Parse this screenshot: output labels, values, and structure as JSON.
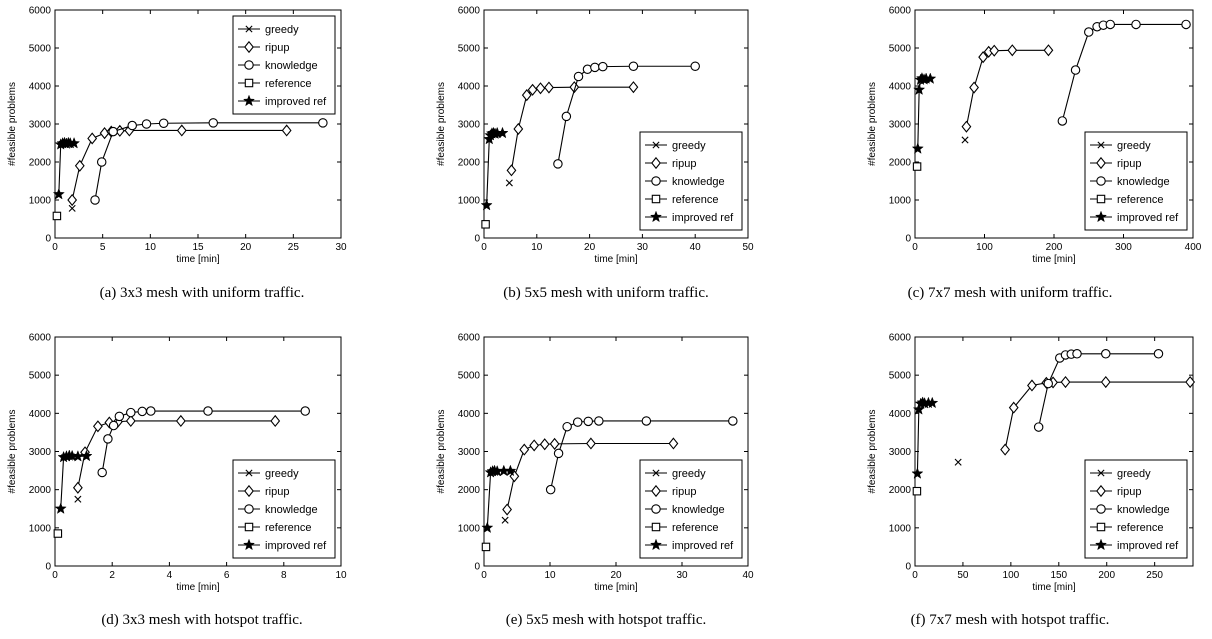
{
  "legend_labels": [
    "greedy",
    "ripup",
    "knowledge",
    "reference",
    "improved ref"
  ],
  "chart_data": [
    {
      "type": "line",
      "caption": "(a) 3x3 mesh with uniform traffic.",
      "xlabel": "time [min]",
      "ylabel": "#feasible problems",
      "xlim": [
        0,
        30
      ],
      "ylim": [
        0,
        6000
      ],
      "xticks": [
        0,
        5,
        10,
        15,
        20,
        25,
        30
      ],
      "yticks": [
        0,
        1000,
        2000,
        3000,
        4000,
        5000,
        6000
      ],
      "legend": "top-right",
      "series": [
        {
          "name": "greedy",
          "marker": "x",
          "x": [
            1.8
          ],
          "y": [
            780
          ]
        },
        {
          "name": "ripup",
          "marker": "diamond",
          "x": [
            1.8,
            2.6,
            3.9,
            5.2,
            5.9,
            6.8,
            7.8,
            13.3,
            24.3
          ],
          "y": [
            1000,
            1900,
            2620,
            2760,
            2800,
            2820,
            2830,
            2830,
            2830
          ]
        },
        {
          "name": "knowledge",
          "marker": "circle",
          "x": [
            4.2,
            4.9,
            6.1,
            8.1,
            9.6,
            11.4,
            16.6,
            28.1
          ],
          "y": [
            1000,
            2000,
            2800,
            2960,
            3000,
            3020,
            3030,
            3030
          ]
        },
        {
          "name": "reference",
          "marker": "square",
          "x": [
            0.2
          ],
          "y": [
            580
          ]
        },
        {
          "name": "improved ref",
          "marker": "star",
          "x": [
            0.4,
            0.6,
            0.8,
            1.0,
            1.2,
            1.4,
            1.6,
            2.0
          ],
          "y": [
            1150,
            2460,
            2490,
            2500,
            2480,
            2500,
            2490,
            2490
          ]
        }
      ]
    },
    {
      "type": "line",
      "caption": "(b) 5x5 mesh with uniform traffic.",
      "xlabel": "time [min]",
      "ylabel": "#feasible problems",
      "xlim": [
        0,
        50
      ],
      "ylim": [
        0,
        6000
      ],
      "xticks": [
        0,
        10,
        20,
        30,
        40,
        50
      ],
      "yticks": [
        0,
        1000,
        2000,
        3000,
        4000,
        5000,
        6000
      ],
      "legend": "bottom-right",
      "series": [
        {
          "name": "greedy",
          "marker": "x",
          "x": [
            4.8
          ],
          "y": [
            1450
          ]
        },
        {
          "name": "ripup",
          "marker": "diamond",
          "x": [
            5.2,
            6.5,
            8.1,
            9.2,
            10.7,
            12.3,
            17.1,
            28.3
          ],
          "y": [
            1780,
            2870,
            3760,
            3900,
            3940,
            3960,
            3970,
            3970
          ]
        },
        {
          "name": "knowledge",
          "marker": "circle",
          "x": [
            14.0,
            15.6,
            17.9,
            19.6,
            21.0,
            22.5,
            28.3,
            40.0
          ],
          "y": [
            1950,
            3200,
            4250,
            4440,
            4490,
            4510,
            4520,
            4520
          ]
        },
        {
          "name": "reference",
          "marker": "square",
          "x": [
            0.3
          ],
          "y": [
            360
          ]
        },
        {
          "name": "improved ref",
          "marker": "star",
          "x": [
            0.5,
            1.0,
            1.2,
            1.5,
            1.8,
            2.1,
            2.5,
            3.5
          ],
          "y": [
            860,
            2600,
            2700,
            2750,
            2760,
            2740,
            2760,
            2760
          ]
        }
      ]
    },
    {
      "type": "line",
      "caption": "(c) 7x7 mesh with uniform traffic.",
      "xlabel": "time [min]",
      "ylabel": "#feasible problems",
      "xlim": [
        0,
        400
      ],
      "ylim": [
        0,
        6000
      ],
      "xticks": [
        0,
        100,
        200,
        300,
        400
      ],
      "yticks": [
        0,
        1000,
        2000,
        3000,
        4000,
        5000,
        6000
      ],
      "legend": "bottom-right",
      "series": [
        {
          "name": "greedy",
          "marker": "x",
          "x": [
            72
          ],
          "y": [
            2580
          ]
        },
        {
          "name": "ripup",
          "marker": "diamond",
          "x": [
            74,
            85,
            98,
            106,
            114,
            140,
            192
          ],
          "y": [
            2930,
            3960,
            4760,
            4900,
            4930,
            4940,
            4940
          ]
        },
        {
          "name": "knowledge",
          "marker": "circle",
          "x": [
            212,
            231,
            250,
            262,
            271,
            281,
            318,
            390
          ],
          "y": [
            3080,
            4420,
            5420,
            5560,
            5600,
            5620,
            5620,
            5620
          ]
        },
        {
          "name": "reference",
          "marker": "square",
          "x": [
            3
          ],
          "y": [
            1880
          ]
        },
        {
          "name": "improved ref",
          "marker": "star",
          "x": [
            4,
            6,
            8,
            10,
            13,
            16,
            22
          ],
          "y": [
            2350,
            3900,
            4160,
            4200,
            4170,
            4190,
            4190
          ]
        }
      ]
    },
    {
      "type": "line",
      "caption": "(d) 3x3 mesh with hotspot traffic.",
      "xlabel": "time [min]",
      "ylabel": "#feasible problems",
      "xlim": [
        0,
        10
      ],
      "ylim": [
        0,
        6000
      ],
      "xticks": [
        0,
        2,
        4,
        6,
        8,
        10
      ],
      "yticks": [
        0,
        1000,
        2000,
        3000,
        4000,
        5000,
        6000
      ],
      "legend": "bottom-right",
      "series": [
        {
          "name": "greedy",
          "marker": "x",
          "x": [
            0.8
          ],
          "y": [
            1750
          ]
        },
        {
          "name": "ripup",
          "marker": "diamond",
          "x": [
            0.8,
            1.05,
            1.5,
            1.9,
            2.2,
            2.65,
            4.4,
            7.7
          ],
          "y": [
            2050,
            2980,
            3660,
            3760,
            3780,
            3800,
            3800,
            3800
          ]
        },
        {
          "name": "knowledge",
          "marker": "circle",
          "x": [
            1.65,
            1.85,
            2.05,
            2.25,
            2.65,
            3.05,
            3.35,
            5.35,
            8.75
          ],
          "y": [
            2450,
            3330,
            3680,
            3920,
            4020,
            4050,
            4060,
            4060,
            4060
          ]
        },
        {
          "name": "reference",
          "marker": "square",
          "x": [
            0.1
          ],
          "y": [
            850
          ]
        },
        {
          "name": "improved ref",
          "marker": "star",
          "x": [
            0.2,
            0.3,
            0.4,
            0.5,
            0.6,
            0.8,
            1.1
          ],
          "y": [
            1500,
            2850,
            2870,
            2890,
            2880,
            2870,
            2880
          ]
        }
      ]
    },
    {
      "type": "line",
      "caption": "(e) 5x5 mesh with hotspot traffic.",
      "xlabel": "time [min]",
      "ylabel": "#feasible problems",
      "xlim": [
        0,
        40
      ],
      "ylim": [
        0,
        6000
      ],
      "xticks": [
        0,
        10,
        20,
        30,
        40
      ],
      "yticks": [
        0,
        1000,
        2000,
        3000,
        4000,
        5000,
        6000
      ],
      "legend": "bottom-right",
      "series": [
        {
          "name": "greedy",
          "marker": "x",
          "x": [
            3.2
          ],
          "y": [
            1200
          ]
        },
        {
          "name": "ripup",
          "marker": "diamond",
          "x": [
            3.5,
            4.6,
            6.1,
            7.6,
            9.2,
            10.7,
            16.2,
            28.7
          ],
          "y": [
            1480,
            2350,
            3050,
            3160,
            3190,
            3200,
            3210,
            3210
          ]
        },
        {
          "name": "knowledge",
          "marker": "circle",
          "x": [
            10.1,
            11.3,
            12.6,
            14.2,
            15.8,
            17.4,
            24.6,
            37.7
          ],
          "y": [
            2000,
            2950,
            3650,
            3770,
            3790,
            3800,
            3800,
            3800
          ]
        },
        {
          "name": "reference",
          "marker": "square",
          "x": [
            0.3
          ],
          "y": [
            500
          ]
        },
        {
          "name": "improved ref",
          "marker": "star",
          "x": [
            0.5,
            1.0,
            1.3,
            1.6,
            2.0,
            3.0,
            4.0
          ],
          "y": [
            1000,
            2450,
            2480,
            2490,
            2480,
            2490,
            2490
          ]
        }
      ]
    },
    {
      "type": "line",
      "caption": "(f) 7x7 mesh with hotspot traffic.",
      "xlabel": "time [min]",
      "ylabel": "#feasible problems",
      "xlim": [
        0,
        290
      ],
      "ylim": [
        0,
        6000
      ],
      "xticks": [
        0,
        50,
        100,
        150,
        200,
        250
      ],
      "yticks": [
        0,
        1000,
        2000,
        3000,
        4000,
        5000,
        6000
      ],
      "legend": "bottom-right",
      "series": [
        {
          "name": "greedy",
          "marker": "x",
          "x": [
            45
          ],
          "y": [
            2720
          ]
        },
        {
          "name": "ripup",
          "marker": "diamond",
          "x": [
            94,
            103,
            122,
            137,
            144,
            157,
            199,
            287
          ],
          "y": [
            3050,
            4150,
            4730,
            4800,
            4810,
            4820,
            4820,
            4820
          ]
        },
        {
          "name": "knowledge",
          "marker": "circle",
          "x": [
            129,
            139,
            151,
            157,
            163,
            169,
            199,
            254
          ],
          "y": [
            3640,
            4780,
            5450,
            5530,
            5550,
            5560,
            5560,
            5560
          ]
        },
        {
          "name": "reference",
          "marker": "square",
          "x": [
            2
          ],
          "y": [
            1960
          ]
        },
        {
          "name": "improved ref",
          "marker": "star",
          "x": [
            2.5,
            4,
            6,
            8,
            10,
            14,
            18
          ],
          "y": [
            2420,
            4100,
            4250,
            4280,
            4260,
            4270,
            4270
          ]
        }
      ]
    }
  ]
}
